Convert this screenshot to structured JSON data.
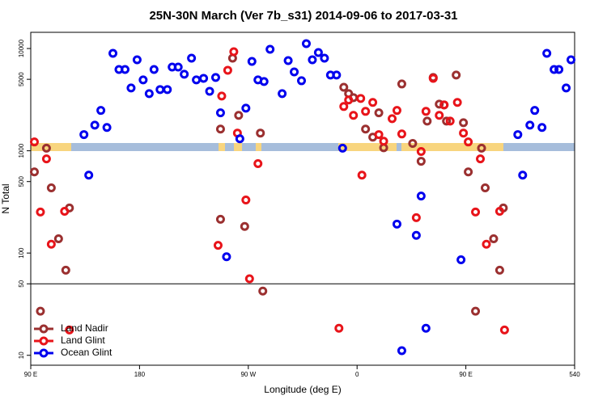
{
  "chart_data": {
    "type": "scatter",
    "title": "25N-30N March (Ver 7b_s31)   2014-09-06 to 2017-03-31",
    "x_label": "Longitude (deg E)",
    "y_label": "N Total",
    "xlim": [
      90,
      540
    ],
    "xticks": [
      {
        "value": 90,
        "label": "90 E"
      },
      180,
      {
        "value": 270,
        "label": "90 W"
      },
      {
        "value": 360,
        "label": "0"
      },
      {
        "value": 450,
        "label": "90 E"
      },
      540
    ],
    "ylim": [
      8,
      14400
    ],
    "log_y": true,
    "yticks": [
      10,
      50,
      100,
      500,
      1000,
      5000,
      10000
    ],
    "legend": "lower left",
    "series": [
      {
        "name": "Land Nadir",
        "color": "#9b3030",
        "x": [
          93,
          103,
          107,
          113,
          119,
          122,
          247,
          247,
          257,
          262,
          267,
          280,
          282,
          98,
          349,
          353,
          357,
          367,
          373,
          378,
          382,
          397,
          406,
          413,
          418,
          423,
          428,
          432,
          434,
          442,
          448,
          452,
          463,
          466,
          473,
          478,
          481,
          458
        ],
        "values": [
          622,
          1060,
          434,
          138,
          68,
          276,
          214,
          1630,
          8040,
          2220,
          182,
          1490,
          42.5,
          27,
          4180,
          3620,
          3310,
          1630,
          1360,
          2350,
          1070,
          4500,
          1180,
          790,
          1950,
          5210,
          2860,
          2810,
          1950,
          5500,
          1880,
          622,
          1060,
          434,
          138,
          68,
          276,
          27
        ]
      },
      {
        "name": "Land Glint",
        "color": "#e8141a",
        "x": [
          93,
          98,
          103,
          107,
          118,
          122,
          245,
          248,
          253,
          258,
          261,
          268,
          271,
          278,
          345,
          349,
          353,
          357,
          364,
          363,
          367,
          373,
          378,
          382,
          389,
          393,
          397,
          409,
          413,
          417,
          423,
          428,
          432,
          437,
          443,
          448,
          452,
          458,
          462,
          467,
          478,
          482
        ],
        "values": [
          1220,
          252,
          834,
          122,
          256,
          17.7,
          119,
          3430,
          6130,
          9300,
          1490,
          330,
          56,
          749,
          18.4,
          2710,
          3140,
          2220,
          578,
          3250,
          2430,
          2970,
          1440,
          1240,
          2060,
          2480,
          1460,
          222,
          984,
          2430,
          5110,
          2220,
          2810,
          1950,
          2970,
          1490,
          1220,
          252,
          834,
          122,
          256,
          17.7
        ]
      },
      {
        "name": "Ocean Glint",
        "color": "#0000ee",
        "x": [
          134,
          138,
          143,
          148,
          153,
          158,
          163,
          168,
          173,
          178,
          183,
          188,
          192,
          197,
          203,
          207,
          212,
          217,
          223,
          227,
          233,
          238,
          243,
          247,
          252,
          263,
          268,
          273,
          278,
          283,
          288,
          298,
          303,
          308,
          314,
          318,
          323,
          328,
          333,
          338,
          343,
          348,
          393,
          397,
          409,
          413,
          417,
          446,
          493,
          497,
          503,
          507,
          513,
          517,
          523,
          527,
          533,
          537
        ],
        "values": [
          1440,
          578,
          1780,
          2480,
          1690,
          8970,
          6240,
          6240,
          4110,
          7760,
          4930,
          3620,
          6240,
          3970,
          3970,
          6590,
          6590,
          5600,
          8040,
          4930,
          5110,
          3820,
          5210,
          2350,
          92,
          1310,
          2610,
          7480,
          4930,
          4760,
          9820,
          3620,
          7620,
          5910,
          4840,
          11160,
          7760,
          9130,
          8040,
          5500,
          5500,
          1060,
          192,
          11.1,
          149,
          361,
          18.4,
          86,
          1440,
          578,
          1780,
          2480,
          1690,
          8970,
          6240,
          6240,
          4110,
          7760
        ]
      }
    ]
  }
}
